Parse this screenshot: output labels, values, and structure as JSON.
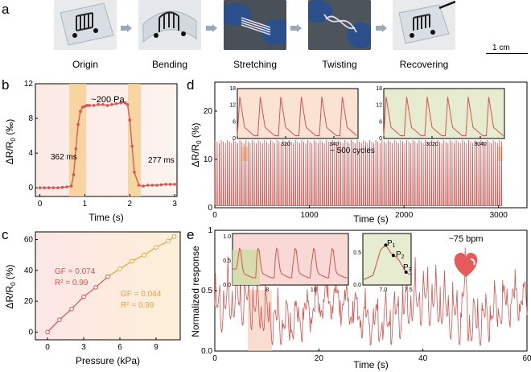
{
  "panels": {
    "a": "a",
    "b": "b",
    "c": "c",
    "d": "d",
    "e": "e"
  },
  "photos": [
    {
      "label": "Origin"
    },
    {
      "label": "Bending"
    },
    {
      "label": "Stretching"
    },
    {
      "label": "Twisting"
    },
    {
      "label": "Recovering"
    }
  ],
  "scalebar": "1 cm",
  "chart_b": {
    "ylabel_main": "ΔR/R",
    "ylabel_sub": "0",
    "ylabel_unit": " (‰)",
    "xlabel": "Time (s)",
    "annot_top": "~200 Pa",
    "annot_left": "362 ms",
    "annot_right": "277 ms",
    "xticks": [
      "0",
      "1",
      "2",
      "3"
    ],
    "yticks": [
      "0",
      "4",
      "8",
      "12"
    ]
  },
  "chart_c": {
    "ylabel_main": "ΔR/R",
    "ylabel_sub": "0",
    "ylabel_unit": " (%)",
    "xlabel": "Pressure (kPa)",
    "gf1": "GF = 0.074",
    "r1": "R² = 0.99",
    "gf2": "GF = 0.044",
    "r2": "R² = 0.99",
    "xticks": [
      "0",
      "3",
      "6",
      "9"
    ],
    "yticks": [
      "0",
      "20",
      "40",
      "60"
    ]
  },
  "chart_d": {
    "ylabel_main": "ΔR/R",
    "ylabel_sub": "0",
    "ylabel_unit": " (%)",
    "xlabel": "Time (s)",
    "annot": "~ 500 cycles",
    "xticks": [
      "0",
      "1000",
      "2000",
      "3000"
    ],
    "yticks": [
      "0",
      "10",
      "20"
    ],
    "inset1_xticks": [
      "320",
      "340"
    ],
    "inset2_xticks": [
      "3020",
      "3040"
    ],
    "inset_yticks": [
      "0",
      "6",
      "12",
      "18"
    ]
  },
  "chart_e": {
    "ylabel": "Normalized response",
    "xlabel": "Time (s)",
    "annot": "~75 bpm",
    "xticks": [
      "0",
      "20",
      "40",
      "60"
    ],
    "yticks": [
      "0.0",
      "0.5",
      "1"
    ],
    "inset1_xticks": [
      "8",
      "10"
    ],
    "inset1_yticks": [
      "0.0",
      "0.5",
      "1.0"
    ],
    "inset2_xticks": [
      "7.0",
      "7.5"
    ],
    "inset2_yticks": [
      "0.0",
      "0.5"
    ],
    "p1": "P",
    "p2": "P",
    "p3": "P",
    "s1": "1",
    "s2": "2",
    "s3": "3"
  },
  "chart_data": [
    {
      "type": "line",
      "panel": "b",
      "x": [
        0,
        0.1,
        0.2,
        0.3,
        0.4,
        0.5,
        0.6,
        0.7,
        0.75,
        0.8,
        0.85,
        0.9,
        0.95,
        1.0,
        1.05,
        1.1,
        1.2,
        1.3,
        1.4,
        1.5,
        1.6,
        1.7,
        1.8,
        1.9,
        1.95,
        2.0,
        2.05,
        2.1,
        2.2,
        2.3,
        2.4,
        2.5,
        2.6,
        2.7,
        2.8,
        2.9,
        3.0
      ],
      "y": [
        0,
        0,
        0,
        0,
        0,
        0.05,
        0.1,
        0.2,
        1.5,
        4.5,
        7.3,
        8.8,
        9.3,
        9.4,
        9.5,
        9.5,
        9.5,
        9.6,
        9.6,
        9.5,
        9.6,
        9.7,
        9.8,
        9.8,
        9.6,
        7.8,
        4.8,
        1.8,
        0.3,
        0.2,
        0.3,
        0.3,
        0.3,
        0.35,
        0.4,
        0.4,
        0.4
      ],
      "ylim": [
        -1,
        12
      ],
      "xlim": [
        -0.1,
        3.05
      ]
    },
    {
      "type": "line",
      "panel": "c",
      "x": [
        0,
        1,
        2,
        3,
        4,
        5,
        6,
        7,
        8,
        9,
        10,
        10.5
      ],
      "y": [
        0,
        8,
        15,
        23,
        29,
        36,
        41,
        46,
        50,
        55,
        59,
        62
      ],
      "xlim": [
        -1,
        11
      ],
      "ylim": [
        -5,
        65
      ]
    },
    {
      "type": "line",
      "panel": "d",
      "cycles": 500,
      "peak": 14,
      "xlim": [
        0,
        3300
      ],
      "ylim": [
        0,
        26
      ]
    },
    {
      "type": "line",
      "panel": "e",
      "xlim": [
        0,
        60
      ],
      "ylim": [
        0,
        1.0
      ],
      "rate_bpm": 75
    }
  ]
}
